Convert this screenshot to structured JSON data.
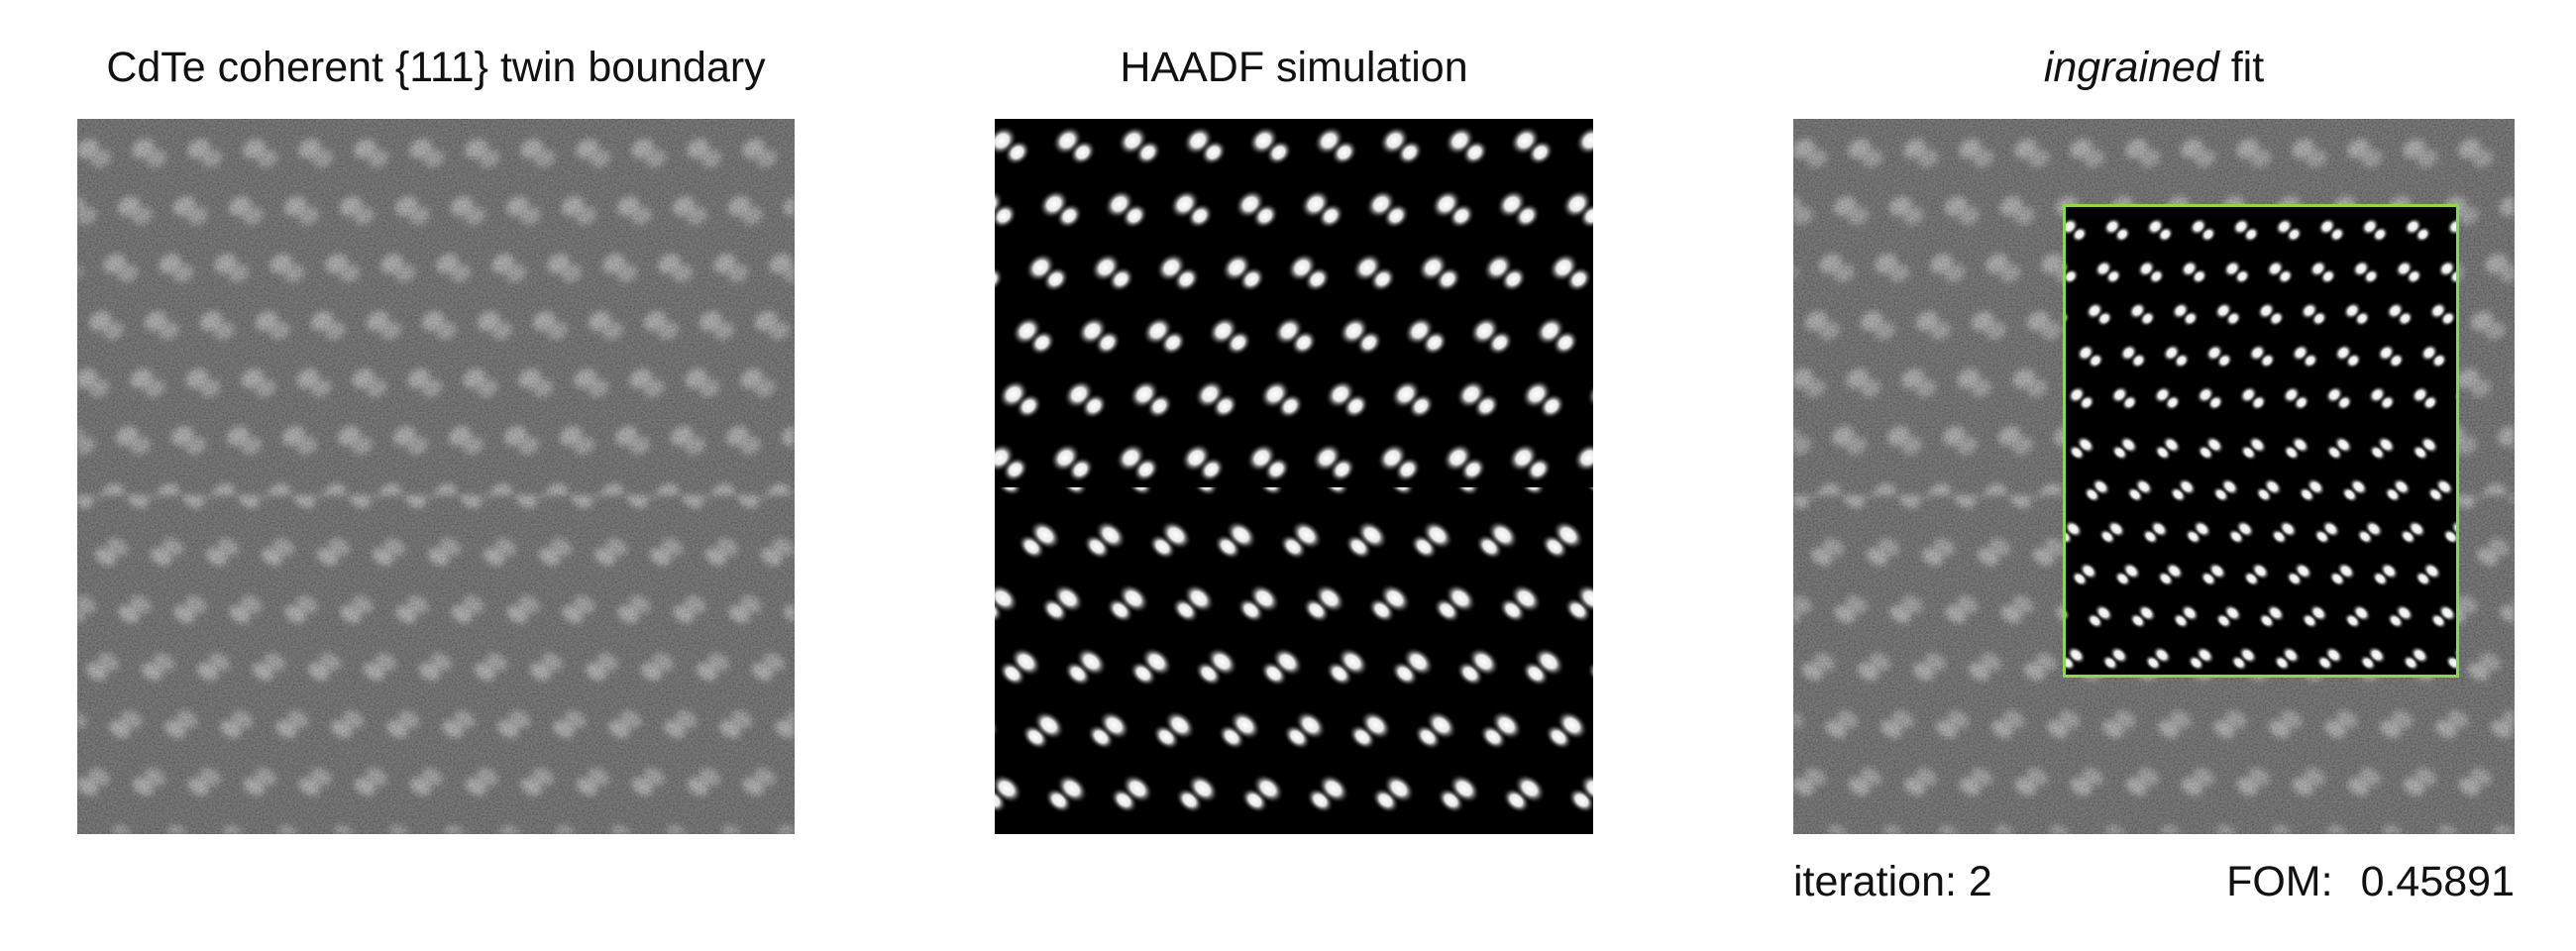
{
  "panels": {
    "left": {
      "title": "CdTe coherent {111} twin boundary"
    },
    "middle": {
      "title": "HAADF simulation"
    },
    "right": {
      "title_italic": "ingrained",
      "title_rest": " fit"
    }
  },
  "footer": {
    "iteration_label": "iteration: 2",
    "fom_label": "FOM:",
    "fom_value": "0.45891"
  },
  "colors": {
    "fit_box": "#8cd84a",
    "background": "#ffffff"
  }
}
